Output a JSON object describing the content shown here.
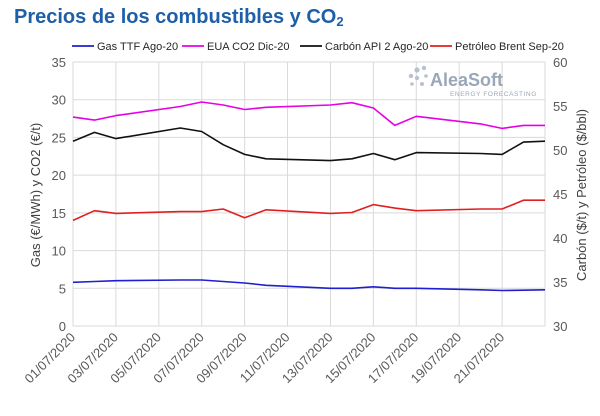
{
  "title_main": "Precios de los combustibles y CO",
  "title_sub": "2",
  "watermark": {
    "brand": "AleaSoft",
    "tagline": "ENERGY FORECASTING"
  },
  "chart_data": {
    "type": "line",
    "x": [
      "01/07/2020",
      "02/07/2020",
      "03/07/2020",
      "06/07/2020",
      "07/07/2020",
      "08/07/2020",
      "09/07/2020",
      "10/07/2020",
      "13/07/2020",
      "14/07/2020",
      "15/07/2020",
      "16/07/2020",
      "17/07/2020",
      "20/07/2020",
      "21/07/2020",
      "22/07/2020",
      "23/07/2020"
    ],
    "x_tick_labels": [
      "01/07/2020",
      "03/07/2020",
      "05/07/2020",
      "07/07/2020",
      "09/07/2020",
      "11/07/2020",
      "13/07/2020",
      "15/07/2020",
      "17/07/2020",
      "19/07/2020",
      "21/07/2020"
    ],
    "xlim": [
      "01/07/2020",
      "23/07/2020"
    ],
    "ylabel_left": "Gas (€/MWh) y CO2 (€/t)",
    "ylabel_right": "Carbón ($/t) y Petróleo ($/bbl)",
    "ylim_left": [
      0,
      35
    ],
    "ylim_right": [
      30,
      60
    ],
    "yticks_left": [
      0,
      5,
      10,
      15,
      20,
      25,
      30,
      35
    ],
    "yticks_right": [
      30,
      35,
      40,
      45,
      50,
      55,
      60
    ],
    "grid": true,
    "legend_position": "top",
    "series": [
      {
        "name": "Gas TTF Ago-20",
        "axis": "left",
        "color": "#1f1fd1",
        "values": [
          5.8,
          5.9,
          6.0,
          6.1,
          6.1,
          5.9,
          5.7,
          5.4,
          5.0,
          5.0,
          5.2,
          5.0,
          5.0,
          4.8,
          4.7,
          4.75,
          4.8
        ]
      },
      {
        "name": "EUA CO2 Dic-20",
        "axis": "left",
        "color": "#e600e6",
        "values": [
          27.7,
          27.3,
          27.9,
          29.1,
          29.7,
          29.3,
          28.7,
          29.0,
          29.3,
          29.6,
          28.9,
          26.6,
          27.8,
          26.8,
          26.2,
          26.6,
          26.6
        ]
      },
      {
        "name": "Carbón API 2 Ago-20",
        "axis": "right",
        "color": "#111111",
        "values": [
          51.0,
          52.0,
          51.3,
          52.5,
          52.1,
          50.6,
          49.5,
          49.0,
          48.8,
          49.0,
          49.6,
          48.9,
          49.7,
          49.6,
          49.5,
          50.9,
          51.0
        ]
      },
      {
        "name": "Petróleo Brent Sep-20",
        "axis": "right",
        "color": "#e02020",
        "values": [
          42.0,
          43.1,
          42.8,
          43.0,
          43.0,
          43.3,
          42.3,
          43.2,
          42.8,
          42.9,
          43.8,
          43.4,
          43.1,
          43.3,
          43.3,
          44.3,
          44.3
        ]
      }
    ]
  }
}
